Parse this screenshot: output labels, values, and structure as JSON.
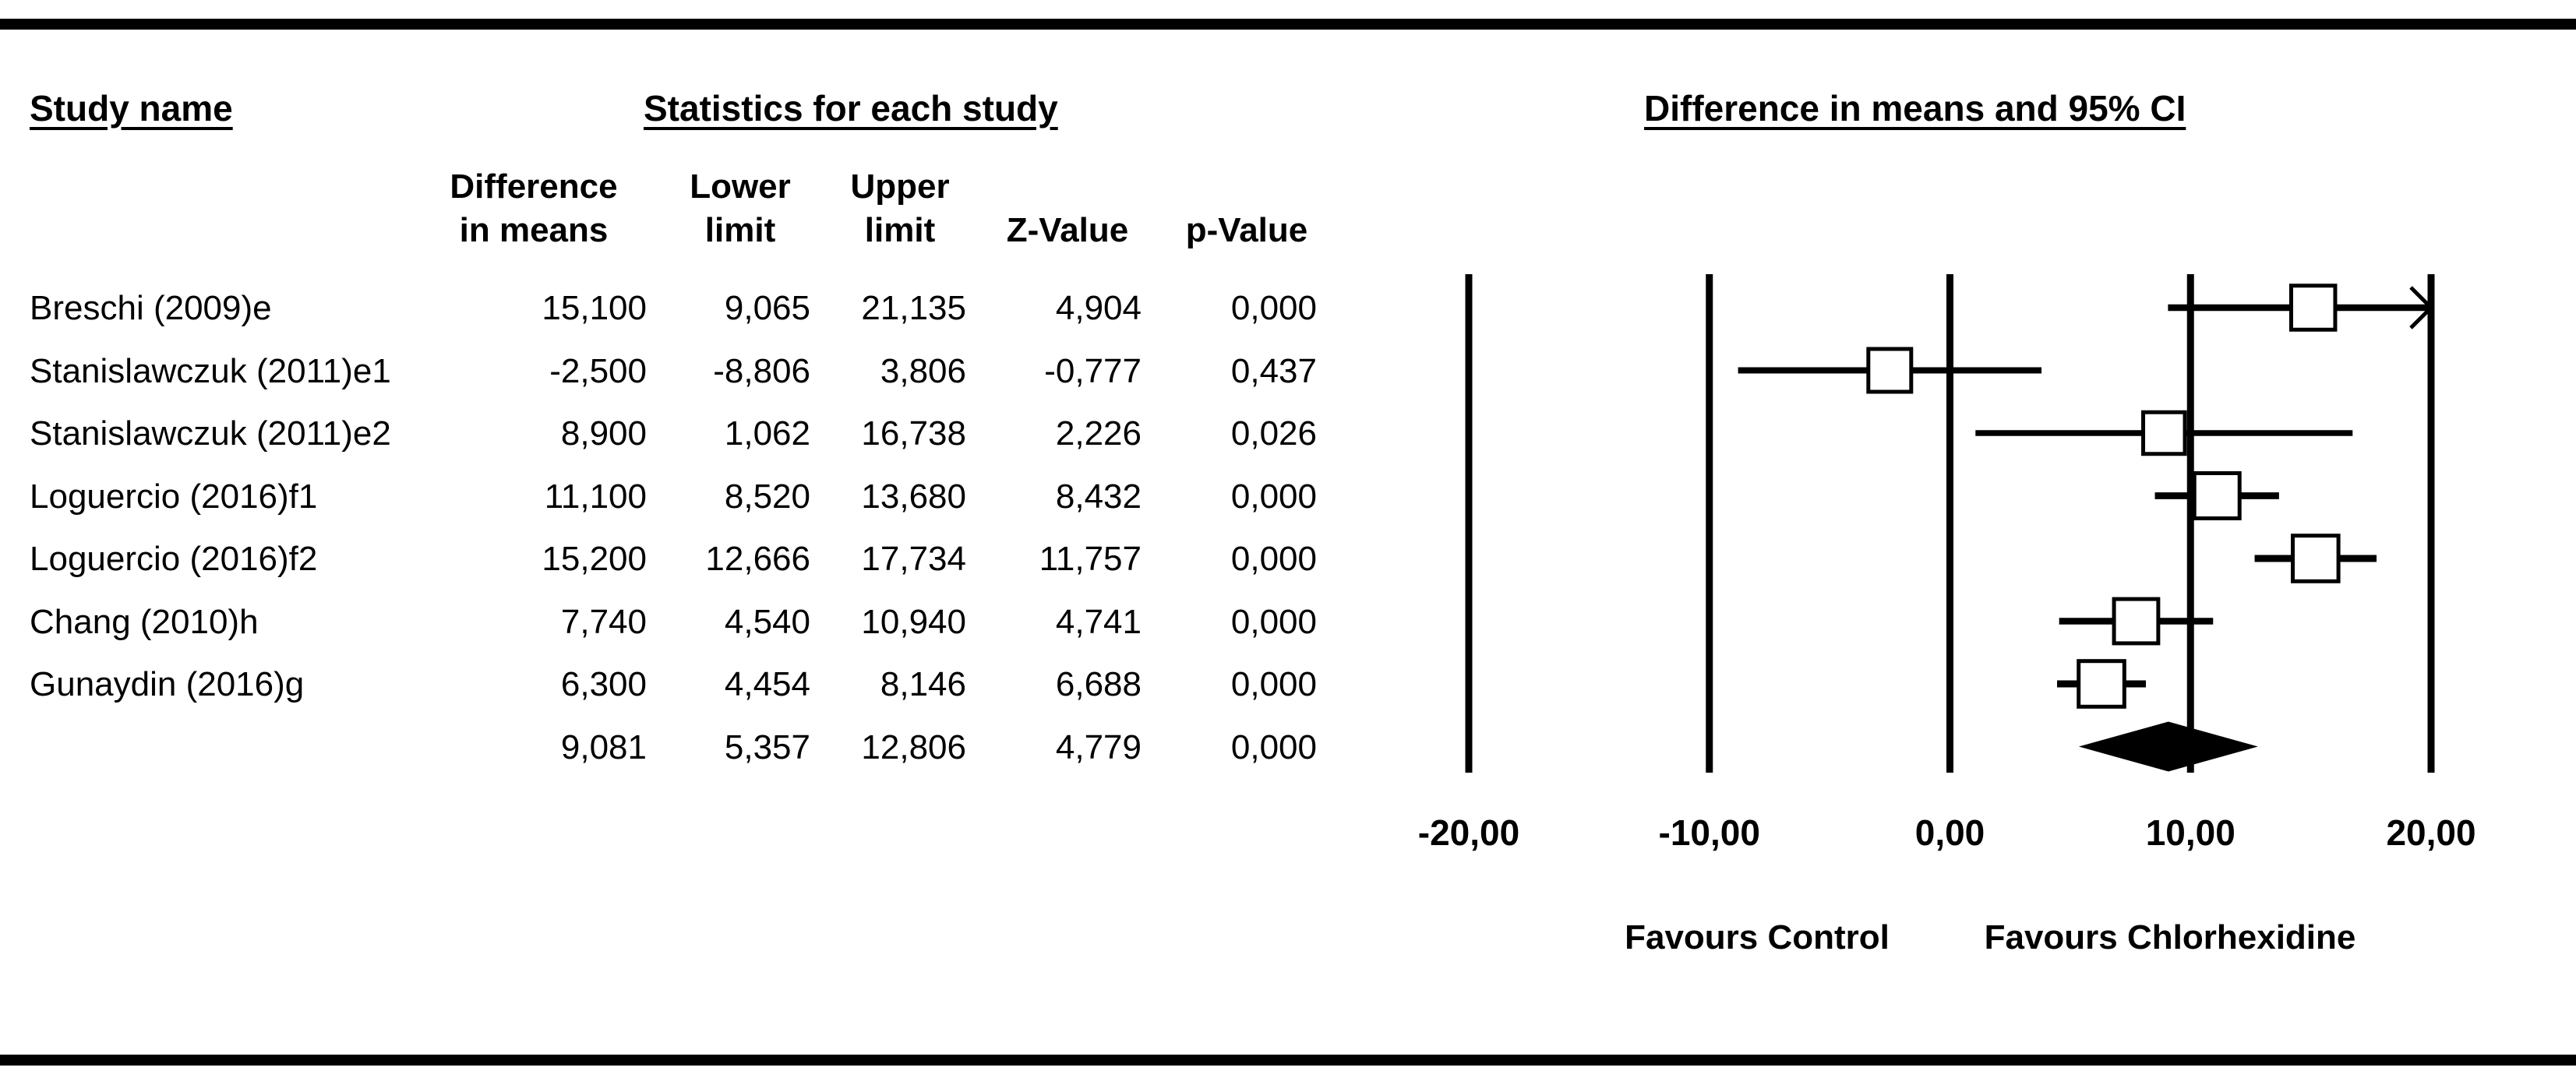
{
  "headers": {
    "study_name": "Study name",
    "statistics": "Statistics for each study",
    "plot_title": "Difference in means and 95% CI"
  },
  "columns": [
    "Difference\nin means",
    "Lower\nlimit",
    "Upper\nlimit",
    "Z-Value",
    "p-Value"
  ],
  "rows": [
    {
      "name": "Breschi (2009)e",
      "diff": "15,100",
      "lower": "9,065",
      "upper": "21,135",
      "z": "4,904",
      "p": "0,000"
    },
    {
      "name": "Stanislawczuk (2011)e1",
      "diff": "-2,500",
      "lower": "-8,806",
      "upper": "3,806",
      "z": "-0,777",
      "p": "0,437"
    },
    {
      "name": "Stanislawczuk (2011)e2",
      "diff": "8,900",
      "lower": "1,062",
      "upper": "16,738",
      "z": "2,226",
      "p": "0,026"
    },
    {
      "name": "Loguercio (2016)f1",
      "diff": "11,100",
      "lower": "8,520",
      "upper": "13,680",
      "z": "8,432",
      "p": "0,000"
    },
    {
      "name": "Loguercio (2016)f2",
      "diff": "15,200",
      "lower": "12,666",
      "upper": "17,734",
      "z": "11,757",
      "p": "0,000"
    },
    {
      "name": "Chang (2010)h",
      "diff": "7,740",
      "lower": "4,540",
      "upper": "10,940",
      "z": "4,741",
      "p": "0,000"
    },
    {
      "name": "Gunaydin (2016)g",
      "diff": "6,300",
      "lower": "4,454",
      "upper": "8,146",
      "z": "6,688",
      "p": "0,000"
    }
  ],
  "summary": {
    "name": "",
    "diff": "9,081",
    "lower": "5,357",
    "upper": "12,806",
    "z": "4,779",
    "p": "0,000"
  },
  "chart_data": {
    "type": "forest",
    "xlim": [
      -20,
      20
    ],
    "ticks": [
      -20,
      -10,
      0,
      10,
      20
    ],
    "tick_labels": [
      "-20,00",
      "-10,00",
      "0,00",
      "10,00",
      "20,00"
    ],
    "favours_left": "Favours Control",
    "favours_right": "Favours Chlorhexidine",
    "studies": [
      {
        "name": "Breschi (2009)e",
        "estimate": 15.1,
        "lower": 9.065,
        "upper": 21.135,
        "weight": 0.55,
        "arrow_right": true
      },
      {
        "name": "Stanislawczuk (2011)e1",
        "estimate": -2.5,
        "lower": -8.806,
        "upper": 3.806,
        "weight": 0.5
      },
      {
        "name": "Stanislawczuk (2011)e2",
        "estimate": 8.9,
        "lower": 1.062,
        "upper": 16.738,
        "weight": 0.45
      },
      {
        "name": "Loguercio (2016)f1",
        "estimate": 11.1,
        "lower": 8.52,
        "upper": 13.68,
        "weight": 0.6
      },
      {
        "name": "Loguercio (2016)f2",
        "estimate": 15.2,
        "lower": 12.666,
        "upper": 17.734,
        "weight": 0.62
      },
      {
        "name": "Chang (2010)h",
        "estimate": 7.74,
        "lower": 4.54,
        "upper": 10.94,
        "weight": 0.56
      },
      {
        "name": "Gunaydin (2016)g",
        "estimate": 6.3,
        "lower": 4.454,
        "upper": 8.146,
        "weight": 0.62
      }
    ],
    "pooled": {
      "estimate": 9.081,
      "lower": 5.357,
      "upper": 12.806
    },
    "colors": {
      "line": "#000000",
      "marker_fill": "#ffffff",
      "diamond": "#000000"
    }
  }
}
